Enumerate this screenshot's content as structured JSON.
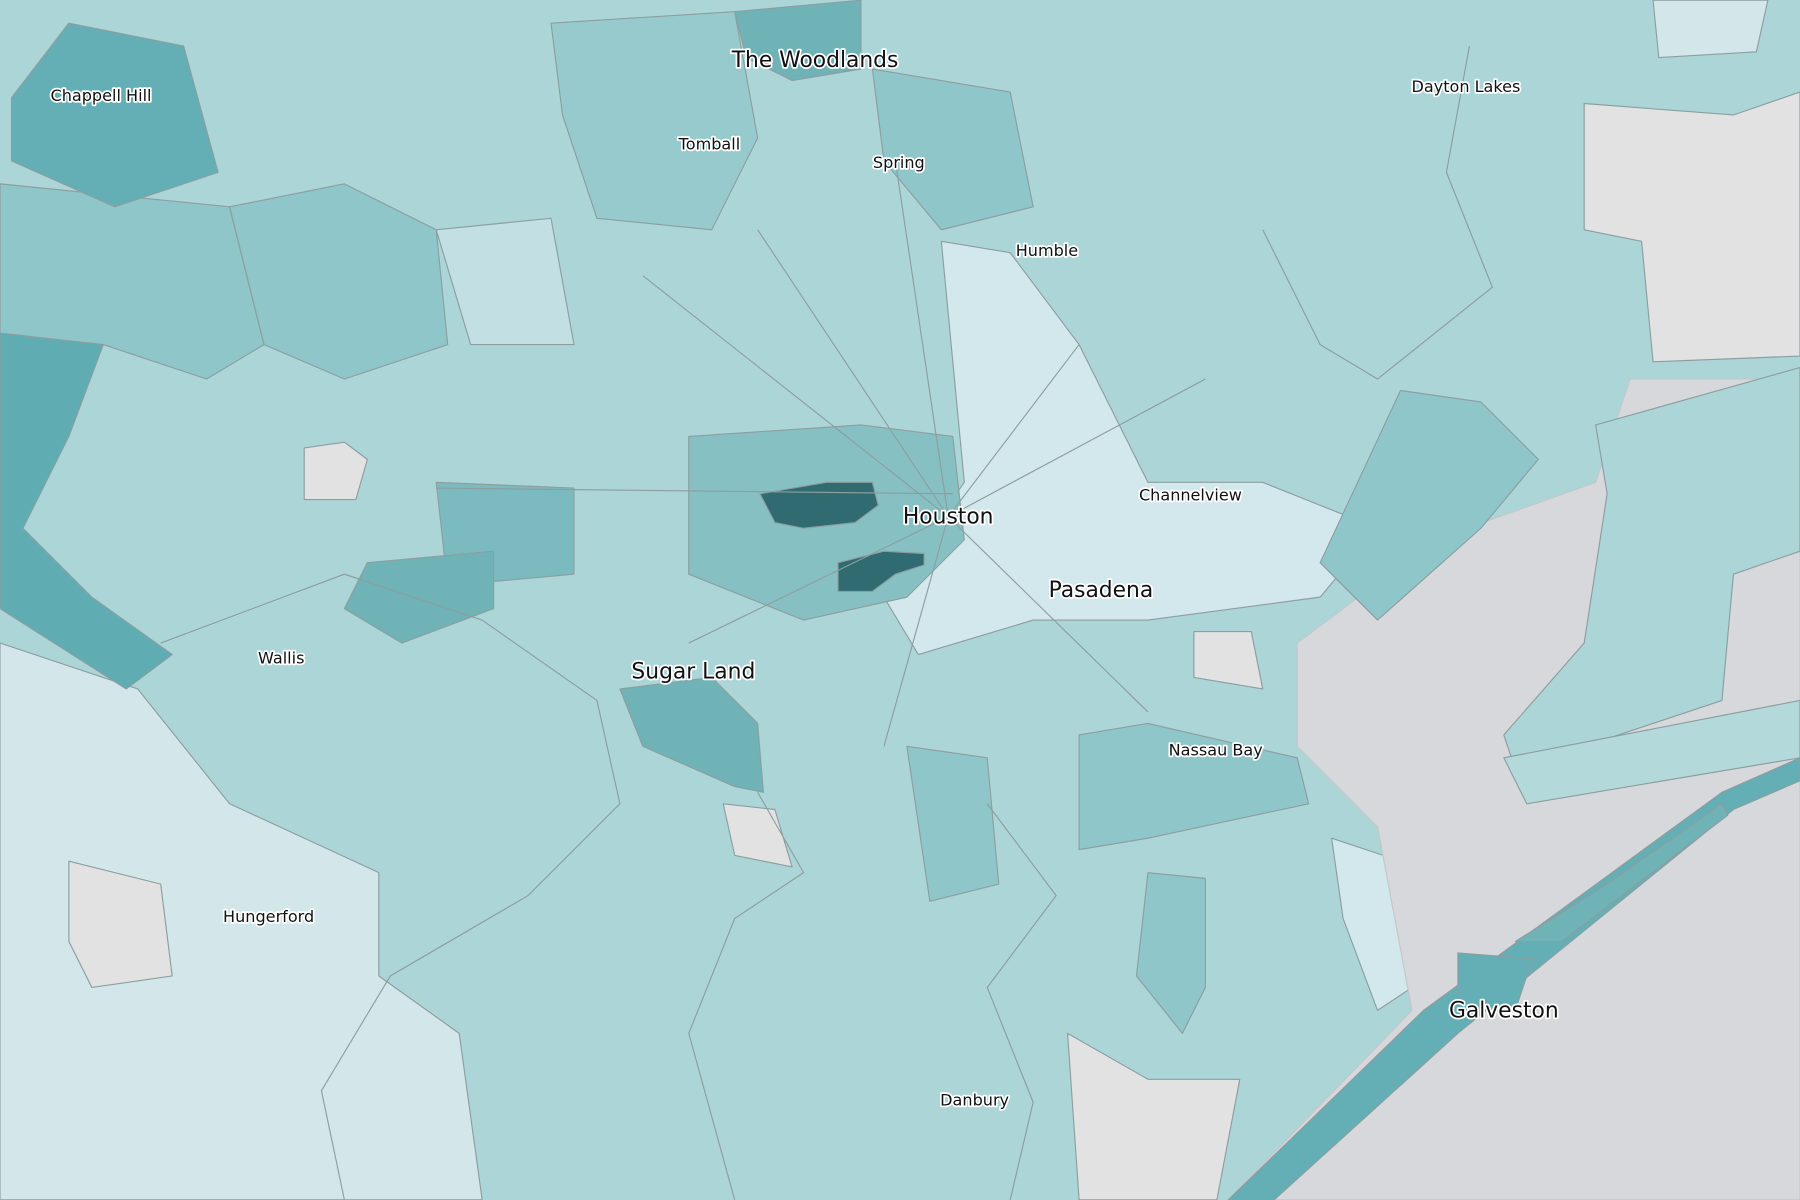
{
  "map": {
    "labels": [
      "The Woodlands",
      "Chappell Hill",
      "Tomball",
      "Spring",
      "Humble",
      "Dayton Lakes",
      "Houston",
      "Channelview",
      "Pasadena",
      "Sugar Land",
      "Wallis",
      "Nassau Bay",
      "Hungerford",
      "Galveston",
      "Danbury"
    ]
  }
}
